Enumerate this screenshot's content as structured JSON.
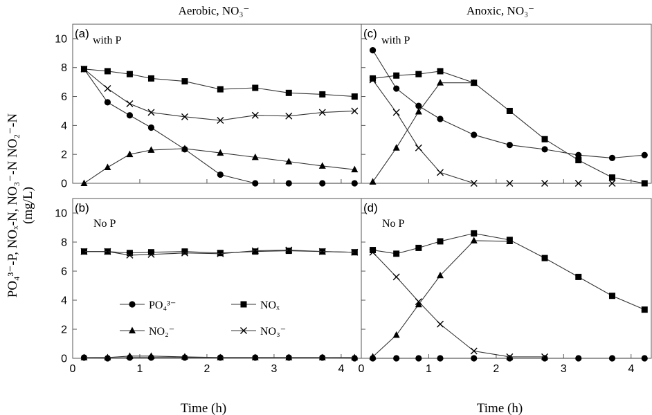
{
  "figure": {
    "column_titles": [
      "Aerobic, NO₃⁻",
      "Anoxic,  NO₃⁻"
    ],
    "y_label_line1": "PO₄³⁻-P, NOₓ-N, NO₃⁻-N NO₂⁻-N",
    "y_label_line2": "(mg/L)",
    "x_label": "Time (h)",
    "legend": [
      {
        "label": "PO₄³⁻",
        "marker": "circle"
      },
      {
        "label": "NOₓ",
        "marker": "square"
      },
      {
        "label": "NO₂⁻",
        "marker": "triangle"
      },
      {
        "label": "NO₃⁻",
        "marker": "cross"
      }
    ],
    "colors": {
      "line": "#333333",
      "marker": "#000000",
      "axis": "#555555"
    }
  },
  "chart_data": [
    {
      "type": "line",
      "panel_label": "(a)",
      "annotation": "with P",
      "xlim": [
        0,
        4.3
      ],
      "ylim": [
        0,
        11
      ],
      "xticks": [
        0,
        1,
        2,
        3,
        4
      ],
      "yticks": [
        0,
        2,
        4,
        6,
        8,
        10
      ],
      "x": [
        0.17,
        0.52,
        0.85,
        1.17,
        1.67,
        2.2,
        2.72,
        3.22,
        3.72,
        4.2
      ],
      "series": [
        {
          "name": "PO₄³⁻",
          "marker": "circle",
          "values": [
            7.9,
            5.6,
            4.7,
            3.85,
            2.35,
            0.6,
            0.0,
            0.0,
            0.0,
            0.0
          ]
        },
        {
          "name": "NOₓ",
          "marker": "square",
          "values": [
            7.9,
            7.75,
            7.55,
            7.25,
            7.05,
            6.5,
            6.6,
            6.25,
            6.15,
            6.0
          ]
        },
        {
          "name": "NO₂⁻",
          "marker": "triangle",
          "values": [
            0.0,
            1.1,
            2.0,
            2.3,
            2.4,
            2.1,
            1.8,
            1.5,
            1.2,
            0.95
          ]
        },
        {
          "name": "NO₃⁻",
          "marker": "cross",
          "values": [
            7.9,
            6.55,
            5.5,
            4.9,
            4.6,
            4.35,
            4.7,
            4.65,
            4.9,
            5.0
          ]
        }
      ]
    },
    {
      "type": "line",
      "panel_label": "(c)",
      "annotation": "with P",
      "xlim": [
        0,
        4.3
      ],
      "ylim": [
        0,
        11
      ],
      "xticks": [
        0,
        1,
        2,
        3,
        4
      ],
      "yticks": [
        0,
        2,
        4,
        6,
        8,
        10
      ],
      "x": [
        0.17,
        0.52,
        0.85,
        1.17,
        1.67,
        2.2,
        2.72,
        3.22,
        3.72,
        4.2
      ],
      "series": [
        {
          "name": "PO₄³⁻",
          "marker": "circle",
          "values": [
            9.2,
            6.55,
            5.35,
            4.45,
            3.35,
            2.65,
            2.35,
            1.95,
            1.75,
            1.95
          ]
        },
        {
          "name": "NOₓ",
          "marker": "square",
          "values": [
            7.25,
            7.45,
            7.55,
            7.75,
            6.95,
            5.0,
            3.05,
            1.6,
            0.4,
            0.0
          ]
        },
        {
          "name": "NO₂⁻",
          "marker": "triangle",
          "values": [
            0.1,
            2.45,
            4.95,
            6.95,
            6.95,
            null,
            null,
            null,
            null,
            null
          ]
        },
        {
          "name": "NO₃⁻",
          "marker": "cross",
          "values": [
            7.15,
            4.9,
            2.45,
            0.75,
            0.0,
            0.0,
            0.0,
            0.0,
            0.0,
            null
          ]
        }
      ]
    },
    {
      "type": "line",
      "panel_label": "(b)",
      "annotation": "No P",
      "xlim": [
        0,
        4.3
      ],
      "ylim": [
        0,
        11
      ],
      "xticks": [
        0,
        1,
        2,
        3,
        4
      ],
      "yticks": [
        0,
        2,
        4,
        6,
        8,
        10
      ],
      "x": [
        0.17,
        0.52,
        0.85,
        1.17,
        1.67,
        2.2,
        2.72,
        3.22,
        3.72,
        4.2
      ],
      "series": [
        {
          "name": "PO₄³⁻",
          "marker": "circle",
          "values": [
            0.05,
            0.0,
            0.05,
            0.05,
            0.05,
            0.05,
            0.05,
            0.05,
            0.05,
            0.0
          ]
        },
        {
          "name": "NOₓ",
          "marker": "square",
          "values": [
            7.35,
            7.35,
            7.25,
            7.3,
            7.35,
            7.25,
            7.35,
            7.4,
            7.35,
            7.3
          ]
        },
        {
          "name": "NO₂⁻",
          "marker": "triangle",
          "values": [
            0.05,
            0.05,
            0.15,
            0.15,
            0.1,
            0.05,
            0.05,
            0.05,
            0.05,
            0.05
          ]
        },
        {
          "name": "NO₃⁻",
          "marker": "cross",
          "values": [
            7.35,
            7.35,
            7.1,
            7.15,
            7.25,
            7.2,
            7.4,
            7.45,
            7.35,
            7.3
          ]
        }
      ]
    },
    {
      "type": "line",
      "panel_label": "(d)",
      "annotation": "No P",
      "xlim": [
        0,
        4.3
      ],
      "ylim": [
        0,
        11
      ],
      "xticks": [
        0,
        1,
        2,
        3,
        4
      ],
      "yticks": [
        0,
        2,
        4,
        6,
        8,
        10
      ],
      "x": [
        0.17,
        0.52,
        0.85,
        1.17,
        1.67,
        2.2,
        2.72,
        3.22,
        3.72,
        4.2
      ],
      "series": [
        {
          "name": "PO₄³⁻",
          "marker": "circle",
          "values": [
            0.0,
            0.0,
            0.0,
            0.0,
            0.0,
            0.0,
            0.0,
            0.0,
            0.0,
            0.0
          ]
        },
        {
          "name": "NOₓ",
          "marker": "square",
          "values": [
            7.45,
            7.2,
            7.6,
            8.05,
            8.6,
            8.15,
            6.9,
            5.6,
            4.3,
            3.35
          ]
        },
        {
          "name": "NO₂⁻",
          "marker": "triangle",
          "values": [
            0.1,
            1.6,
            3.7,
            5.7,
            8.1,
            8.05,
            null,
            null,
            null,
            null
          ]
        },
        {
          "name": "NO₃⁻",
          "marker": "cross",
          "values": [
            7.3,
            5.6,
            3.9,
            2.35,
            0.5,
            0.1,
            0.1,
            null,
            null,
            null
          ]
        }
      ]
    }
  ]
}
